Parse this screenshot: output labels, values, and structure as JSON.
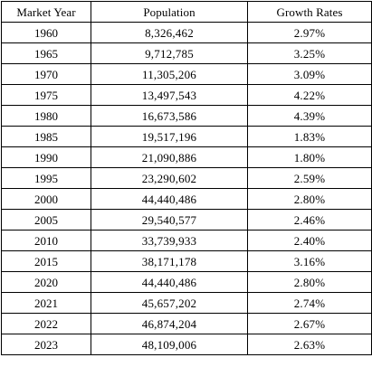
{
  "table": {
    "headers": [
      "Market Year",
      "Population",
      "Growth Rates"
    ],
    "rows": [
      [
        "1960",
        "8,326,462",
        "2.97%"
      ],
      [
        "1965",
        "9,712,785",
        "3.25%"
      ],
      [
        "1970",
        "11,305,206",
        "3.09%"
      ],
      [
        "1975",
        "13,497,543",
        "4.22%"
      ],
      [
        "1980",
        "16,673,586",
        "4.39%"
      ],
      [
        "1985",
        "19,517,196",
        "1.83%"
      ],
      [
        "1990",
        "21,090,886",
        "1.80%"
      ],
      [
        "1995",
        "23,290,602",
        "2.59%"
      ],
      [
        "2000",
        "44,440,486",
        "2.80%"
      ],
      [
        "2005",
        "29,540,577",
        "2.46%"
      ],
      [
        "2010",
        "33,739,933",
        "2.40%"
      ],
      [
        "2015",
        "38,171,178",
        "3.16%"
      ],
      [
        "2020",
        "44,440,486",
        "2.80%"
      ],
      [
        "2021",
        "45,657,202",
        "2.74%"
      ],
      [
        "2022",
        "46,874,204",
        "2.67%"
      ],
      [
        "2023",
        "48,109,006",
        "2.63%"
      ]
    ]
  }
}
